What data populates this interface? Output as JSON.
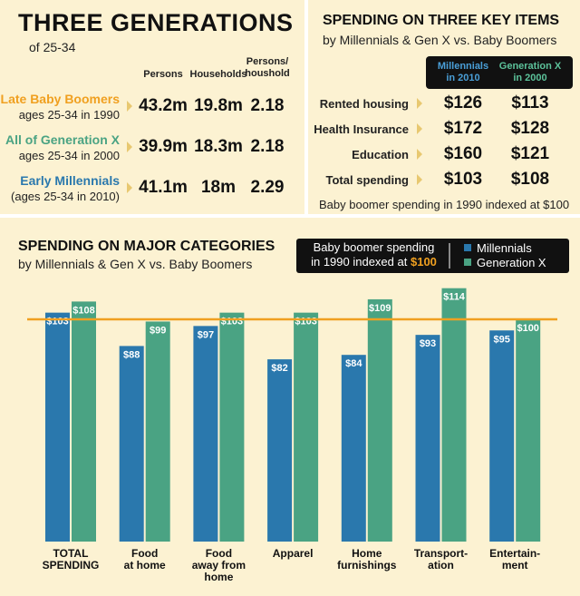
{
  "generations": {
    "title": "THREE GENERATIONS",
    "subtitle": "of 25-34",
    "columns": [
      "Persons",
      "Households",
      "Persons/\nhoushold"
    ],
    "rows": [
      {
        "label": "Late Baby Boomers",
        "sublabel": "ages 25-34 in 1990",
        "color": "#f0a020",
        "cells": [
          "43.2m",
          "19.8m",
          "2.18"
        ]
      },
      {
        "label": "All of Generation X",
        "sublabel": "ages 25-34 in 2000",
        "color": "#4aa383",
        "cells": [
          "39.9m",
          "18.3m",
          "2.18"
        ]
      },
      {
        "label": "Early Millennials",
        "sublabel": "(ages 25-34 in 2010)",
        "color": "#2a78ad",
        "cells": [
          "41.1m",
          "18m",
          "2.29"
        ]
      }
    ]
  },
  "key_items": {
    "title": "SPENDING ON THREE KEY ITEMS",
    "subtitle": "by Millennials & Gen X vs. Baby Boomers",
    "columns": [
      {
        "name": "Millennials\nin 2010",
        "color": "#4a9fd8"
      },
      {
        "name": "Generation X\nin 2000",
        "color": "#5cc29a"
      }
    ],
    "rows": [
      {
        "label": "Rented housing",
        "cells": [
          "$126",
          "$113"
        ]
      },
      {
        "label": "Health Insurance",
        "cells": [
          "$172",
          "$128"
        ]
      },
      {
        "label": "Education",
        "cells": [
          "$160",
          "$121"
        ]
      },
      {
        "label": "Total spending",
        "cells": [
          "$103",
          "$108"
        ]
      }
    ],
    "footnote": "Baby boomer spending in 1990 indexed at $100"
  },
  "chart_data": {
    "type": "bar",
    "title": "SPENDING ON MAJOR CATEGORIES",
    "subtitle": "by Millennials & Gen X vs. Baby Boomers",
    "categories": [
      "TOTAL\nSPENDING",
      "Food\nat home",
      "Food\naway from\nhome",
      "Apparel",
      "Home\nfurnishings",
      "Transport-\nation",
      "Entertain-\nment"
    ],
    "series": [
      {
        "name": "Millennials",
        "color": "#2a78ad",
        "values": [
          103,
          88,
          97,
          82,
          84,
          93,
          95
        ],
        "value_labels": [
          "$103",
          "$88",
          "$97",
          "$82",
          "$84",
          "$93",
          "$95"
        ]
      },
      {
        "name": "Generation X",
        "color": "#4aa383",
        "values": [
          108,
          99,
          103,
          103,
          109,
          114,
          100
        ],
        "value_labels": [
          "$108",
          "$99",
          "$103",
          "$103",
          "$109",
          "$114",
          "$100"
        ]
      }
    ],
    "reference_line": {
      "text": "Baby boomer spending\nin 1990 indexed at",
      "value": 100,
      "label": "$100",
      "color": "#f0a020"
    }
  }
}
